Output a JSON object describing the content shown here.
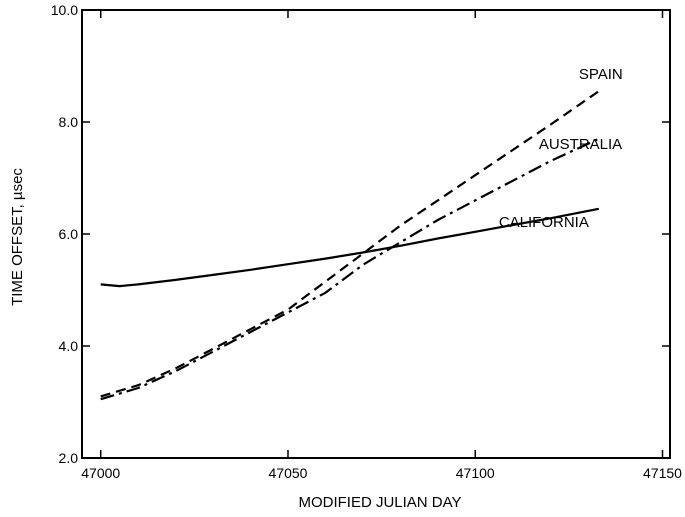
{
  "chart_data": {
    "type": "line",
    "title": "",
    "xlabel": "MODIFIED JULIAN DAY",
    "ylabel": "TIME OFFSET, µsec",
    "xlim": [
      46995,
      47152
    ],
    "ylim": [
      2.0,
      10.0
    ],
    "x_ticks": [
      47000,
      47050,
      47100,
      47150
    ],
    "x_tick_labels": [
      "47000",
      "47050",
      "47100",
      "47150"
    ],
    "y_ticks": [
      2.0,
      4.0,
      6.0,
      8.0,
      10.0
    ],
    "y_tick_labels": [
      "2.0",
      "4.0",
      "6.0",
      "8.0",
      "10.0"
    ],
    "grid": false,
    "legend": "none (series labeled directly at line ends)",
    "series": [
      {
        "name": "SPAIN",
        "style": "dashed",
        "color": "#000000",
        "x": [
          47000,
          47010,
          47020,
          47030,
          47040,
          47050,
          47060,
          47070,
          47080,
          47090,
          47100,
          47110,
          47120,
          47133
        ],
        "y": [
          3.1,
          3.3,
          3.6,
          3.95,
          4.3,
          4.65,
          5.15,
          5.65,
          6.15,
          6.6,
          7.05,
          7.5,
          7.95,
          8.55
        ]
      },
      {
        "name": "AUSTRALIA",
        "style": "dash-dot",
        "color": "#000000",
        "x": [
          47000,
          47010,
          47020,
          47030,
          47040,
          47050,
          47060,
          47070,
          47080,
          47090,
          47100,
          47110,
          47120,
          47133
        ],
        "y": [
          3.05,
          3.25,
          3.55,
          3.9,
          4.25,
          4.6,
          4.95,
          5.45,
          5.85,
          6.25,
          6.6,
          6.95,
          7.3,
          7.7
        ]
      },
      {
        "name": "CALIFORNIA",
        "style": "solid",
        "color": "#000000",
        "x": [
          47000,
          47005,
          47010,
          47020,
          47030,
          47040,
          47050,
          47060,
          47070,
          47080,
          47090,
          47100,
          47110,
          47120,
          47133
        ],
        "y": [
          5.1,
          5.07,
          5.1,
          5.18,
          5.27,
          5.36,
          5.46,
          5.56,
          5.67,
          5.79,
          5.92,
          6.04,
          6.16,
          6.28,
          6.45
        ]
      }
    ]
  }
}
